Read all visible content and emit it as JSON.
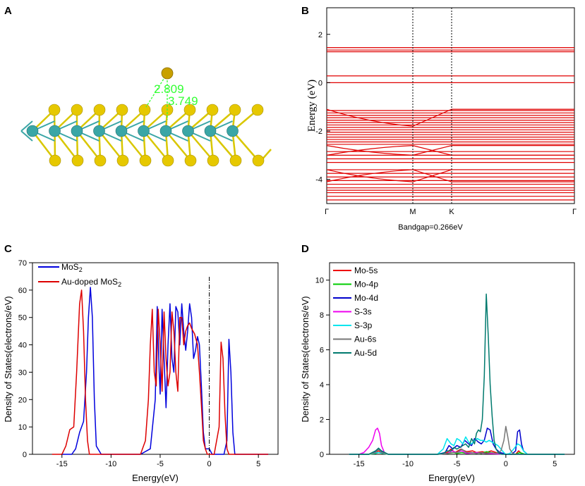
{
  "panels": {
    "A": {
      "letter": "A",
      "bond_labels": [
        "2.809",
        "3.749"
      ],
      "colors": {
        "mo": "#3aa6a6",
        "s": "#e6c800",
        "au": "#c8a000",
        "bond": "#d9c700",
        "dash": "#33ff33"
      }
    },
    "B": {
      "letter": "B"
    },
    "C": {
      "letter": "C"
    },
    "D": {
      "letter": "D"
    }
  },
  "chart_data": [
    {
      "type": "line",
      "id": "B",
      "title": "",
      "xlabel": "",
      "ylabel": "Energy (eV)",
      "footnote": "Bandgap=0.266eV",
      "kpoints": [
        "Γ",
        "M",
        "K",
        "Γ"
      ],
      "ylim": [
        -5,
        3.1
      ],
      "yticks": [
        "-4",
        "-2",
        "0",
        "2"
      ],
      "ytick_values": [
        -4,
        -2,
        0,
        2
      ],
      "color": "#e00000",
      "flat_bands": [
        1.45,
        1.35,
        1.28,
        0.28,
        0.0,
        -1.15,
        -1.25,
        -1.35,
        -1.45,
        -1.55,
        -1.65,
        -1.75,
        -1.85,
        -1.95,
        -2.05,
        -2.15,
        -2.25,
        -2.35,
        -2.45,
        -2.55,
        -2.85,
        -3.0,
        -3.15,
        -3.3,
        -3.6,
        -3.75,
        -3.9,
        -4.05,
        -4.2,
        -4.35,
        -4.45,
        -4.55,
        -4.7,
        -4.85
      ],
      "dispersive_bands": [
        {
          "values": [
            -1.1,
            -1.8,
            -1.1,
            -1.1
          ]
        },
        {
          "values": [
            -2.6,
            -3.0,
            -2.6,
            -2.6
          ]
        },
        {
          "values": [
            -3.0,
            -2.6,
            -3.0,
            -3.0
          ]
        },
        {
          "values": [
            -3.6,
            -4.1,
            -3.6,
            -3.6
          ]
        },
        {
          "values": [
            -4.1,
            -3.6,
            -4.1,
            -4.1
          ]
        }
      ]
    },
    {
      "type": "line",
      "id": "C",
      "xlabel": "Energy(eV)",
      "ylabel": "Density of States(electrons/eV)",
      "xlim": [
        -18,
        7
      ],
      "ylim": [
        0,
        70
      ],
      "xticks": [
        "-15",
        "-10",
        "-5",
        "0",
        "5"
      ],
      "xtick_values": [
        -15,
        -10,
        -5,
        0,
        5
      ],
      "yticks": [
        "0",
        "10",
        "20",
        "30",
        "40",
        "50",
        "60",
        "70"
      ],
      "ytick_values": [
        0,
        10,
        20,
        30,
        40,
        50,
        60,
        70
      ],
      "fermi_level": 0,
      "series": [
        {
          "name": "MoS",
          "sub": "2",
          "color": "#0000dd",
          "x": [
            -15,
            -14,
            -13.6,
            -13.2,
            -12.8,
            -12.5,
            -12.3,
            -12.1,
            -11.9,
            -11.7,
            -11.5,
            -11,
            -7,
            -6,
            -5.5,
            -5.3,
            -5.1,
            -5.0,
            -4.8,
            -4.6,
            -4.4,
            -4.2,
            -4.0,
            -3.8,
            -3.6,
            -3.4,
            -3.2,
            -3.0,
            -2.8,
            -2.6,
            -2.4,
            -2.2,
            -2.0,
            -1.8,
            -1.6,
            -1.4,
            -1.2,
            -1.0,
            -0.8,
            -0.6,
            -0.4,
            -0.2,
            0,
            0.3,
            0.5,
            1.0,
            1.5,
            1.8,
            2.0,
            2.2,
            2.4,
            2.6,
            3,
            6
          ],
          "y": [
            0,
            0,
            2,
            8,
            12,
            30,
            50,
            61,
            50,
            20,
            3,
            0,
            0,
            2,
            20,
            54,
            30,
            22,
            53,
            35,
            17,
            40,
            55,
            35,
            30,
            54,
            52,
            40,
            55,
            45,
            38,
            45,
            55,
            50,
            35,
            38,
            43,
            40,
            25,
            8,
            2,
            2,
            2,
            0,
            0,
            0,
            0,
            5,
            42,
            30,
            8,
            0,
            0,
            0
          ]
        },
        {
          "name": "Au-doped MoS",
          "sub": "2",
          "color": "#dd0000",
          "x": [
            -16,
            -15,
            -14.6,
            -14.2,
            -13.8,
            -13.5,
            -13.2,
            -13.0,
            -12.8,
            -12.6,
            -12.4,
            -12.2,
            -12.0,
            -7,
            -6.5,
            -6.2,
            -6.0,
            -5.8,
            -5.6,
            -5.4,
            -5.2,
            -5.0,
            -4.8,
            -4.6,
            -4.4,
            -4.2,
            -4.0,
            -3.8,
            -3.6,
            -3.4,
            -3.2,
            -3.0,
            -2.8,
            -2.6,
            -2.4,
            -2.2,
            -2.0,
            -1.8,
            -1.5,
            -1.2,
            -1.0,
            -0.8,
            -0.6,
            -0.4,
            -0.2,
            0,
            0.5,
            1.0,
            1.2,
            1.4,
            1.6,
            1.8,
            2.0,
            6
          ],
          "y": [
            0,
            0,
            3,
            9,
            10,
            30,
            55,
            60,
            45,
            20,
            5,
            0,
            0,
            0,
            5,
            20,
            40,
            53,
            30,
            25,
            53,
            40,
            23,
            52,
            35,
            25,
            30,
            52,
            45,
            30,
            23,
            50,
            50,
            40,
            45,
            47,
            48,
            46,
            44,
            40,
            30,
            18,
            5,
            2,
            0,
            0,
            0,
            10,
            41,
            35,
            15,
            2,
            0,
            0
          ]
        }
      ]
    },
    {
      "type": "line",
      "id": "D",
      "xlabel": "Energy(eV)",
      "ylabel": "Density of States(electrons/eV)",
      "xlim": [
        -18,
        7
      ],
      "ylim": [
        0,
        11
      ],
      "xticks": [
        "-15",
        "-10",
        "-5",
        "0",
        "5"
      ],
      "xtick_values": [
        -15,
        -10,
        -5,
        0,
        5
      ],
      "yticks": [
        "0",
        "2",
        "4",
        "6",
        "8",
        "10"
      ],
      "ytick_values": [
        0,
        2,
        4,
        6,
        8,
        10
      ],
      "series": [
        {
          "name": "Mo-5s",
          "color": "#ee0000",
          "x": [
            -16,
            -14,
            -13.5,
            -13,
            -12.5,
            -12,
            -7,
            -6,
            -5.6,
            -5.2,
            -4.6,
            -4,
            -3.4,
            -3,
            -2.4,
            -2,
            -1.5,
            -1,
            0,
            1,
            1.3,
            1.6,
            2,
            6
          ],
          "y": [
            0,
            0,
            0.05,
            0.2,
            0.05,
            0,
            0,
            0.1,
            0.3,
            0.1,
            0.3,
            0.15,
            0.2,
            0.1,
            0.15,
            0.1,
            0.2,
            0.1,
            0,
            0,
            0.2,
            0.05,
            0,
            0
          ]
        },
        {
          "name": "Mo-4p",
          "color": "#00cc00",
          "x": [
            -16,
            -14,
            -13.3,
            -13,
            -12.6,
            -12,
            -7,
            -6,
            -5.3,
            -5,
            -4.5,
            -4,
            -3,
            -2.5,
            -2,
            -1,
            0,
            1,
            1.4,
            2,
            6
          ],
          "y": [
            0,
            0,
            0.05,
            0.1,
            0.05,
            0,
            0,
            0.05,
            0.1,
            0.05,
            0.1,
            0.05,
            0.1,
            0.05,
            0.15,
            0.05,
            0,
            0,
            0.1,
            0,
            0
          ]
        },
        {
          "name": "Mo-4d",
          "color": "#0000cc",
          "x": [
            -16,
            -14,
            -13.2,
            -13,
            -12.8,
            -12,
            -7,
            -6.2,
            -5.8,
            -5.4,
            -5,
            -4.6,
            -4.2,
            -3.8,
            -3.5,
            -3.2,
            -2.8,
            -2.5,
            -2.2,
            -1.9,
            -1.6,
            -1.3,
            -1,
            -0.6,
            -0.2,
            0,
            0.6,
            1,
            1.2,
            1.4,
            1.6,
            1.8,
            2.2,
            6
          ],
          "y": [
            0,
            0,
            0.2,
            0.35,
            0.2,
            0,
            0,
            0.1,
            0.5,
            0.3,
            0.5,
            0.4,
            0.8,
            0.6,
            0.5,
            0.9,
            0.7,
            0.6,
            0.8,
            1.5,
            1.4,
            0.6,
            0.3,
            0.1,
            0.05,
            0,
            0,
            0.2,
            1.3,
            1.4,
            0.6,
            0.2,
            0,
            0
          ]
        },
        {
          "name": "S-3s",
          "color": "#ee00ee",
          "x": [
            -16,
            -15,
            -14.5,
            -14,
            -13.6,
            -13.3,
            -13.1,
            -12.9,
            -12.7,
            -12.4,
            -12,
            -7,
            -6,
            -5.5,
            -5,
            -4.5,
            -4,
            -3,
            -2,
            0,
            6
          ],
          "y": [
            0,
            0,
            0.1,
            0.4,
            0.8,
            1.4,
            1.5,
            1.2,
            0.5,
            0.1,
            0,
            0,
            0.05,
            0.2,
            0.1,
            0.2,
            0.05,
            0.1,
            0.05,
            0,
            0
          ]
        },
        {
          "name": "S-3p",
          "color": "#00e5ee",
          "x": [
            -16,
            -14,
            -13,
            -12,
            -7,
            -6.4,
            -6,
            -5.6,
            -5.3,
            -5,
            -4.7,
            -4.4,
            -4.1,
            -3.8,
            -3.5,
            -3.2,
            -2.9,
            -2.6,
            -2.3,
            -2,
            -1.7,
            -1.4,
            -1.1,
            -0.8,
            -0.5,
            -0.2,
            0,
            0.4,
            0.8,
            1.2,
            1.5,
            1.8,
            2.2,
            6
          ],
          "y": [
            0,
            0,
            0.1,
            0,
            0,
            0.3,
            0.9,
            0.6,
            0.5,
            0.9,
            0.8,
            0.6,
            1.0,
            0.7,
            0.6,
            0.8,
            0.9,
            0.8,
            0.8,
            0.7,
            0.8,
            0.7,
            0.6,
            0.5,
            0.3,
            0.1,
            0,
            0.05,
            0.3,
            0.6,
            0.5,
            0.2,
            0,
            0
          ]
        },
        {
          "name": "Au-6s",
          "color": "#777777",
          "x": [
            -16,
            -14,
            -13.3,
            -13,
            -12.7,
            -12,
            -7,
            -6,
            -5.5,
            -5,
            -4.5,
            -4,
            -3.5,
            -3,
            -2.5,
            -2,
            -1.5,
            -1,
            -0.5,
            -0.2,
            0,
            0.2,
            0.4,
            0.7,
            1,
            6
          ],
          "y": [
            0,
            0,
            0.1,
            0.3,
            0.1,
            0,
            0,
            0.05,
            0.1,
            0.1,
            0.3,
            0.1,
            0.1,
            0.05,
            0.1,
            0.05,
            0.1,
            0.05,
            0.2,
            0.8,
            1.6,
            1.0,
            0.3,
            0.05,
            0,
            0
          ]
        },
        {
          "name": "Au-5d",
          "color": "#007a6e",
          "x": [
            -16,
            -14,
            -13.3,
            -13,
            -12.7,
            -12,
            -7,
            -6.4,
            -6,
            -5.6,
            -5.3,
            -5,
            -4.7,
            -4.4,
            -4.1,
            -3.8,
            -3.5,
            -3.2,
            -3.0,
            -2.8,
            -2.6,
            -2.4,
            -2.2,
            -2.0,
            -1.8,
            -1.6,
            -1.4,
            -1.2,
            -1.0,
            -0.7,
            -0.4,
            0,
            0.5,
            1,
            6
          ],
          "y": [
            0,
            0,
            0.2,
            0.35,
            0.2,
            0,
            0,
            0.05,
            0.2,
            0.2,
            0.4,
            0.3,
            0.4,
            0.5,
            0.6,
            0.4,
            0.9,
            0.6,
            1.2,
            1.4,
            1.3,
            2.0,
            4.5,
            9.2,
            6.8,
            4.0,
            2.2,
            0.8,
            0.3,
            0.05,
            0,
            0,
            0,
            0,
            0
          ]
        }
      ]
    }
  ]
}
